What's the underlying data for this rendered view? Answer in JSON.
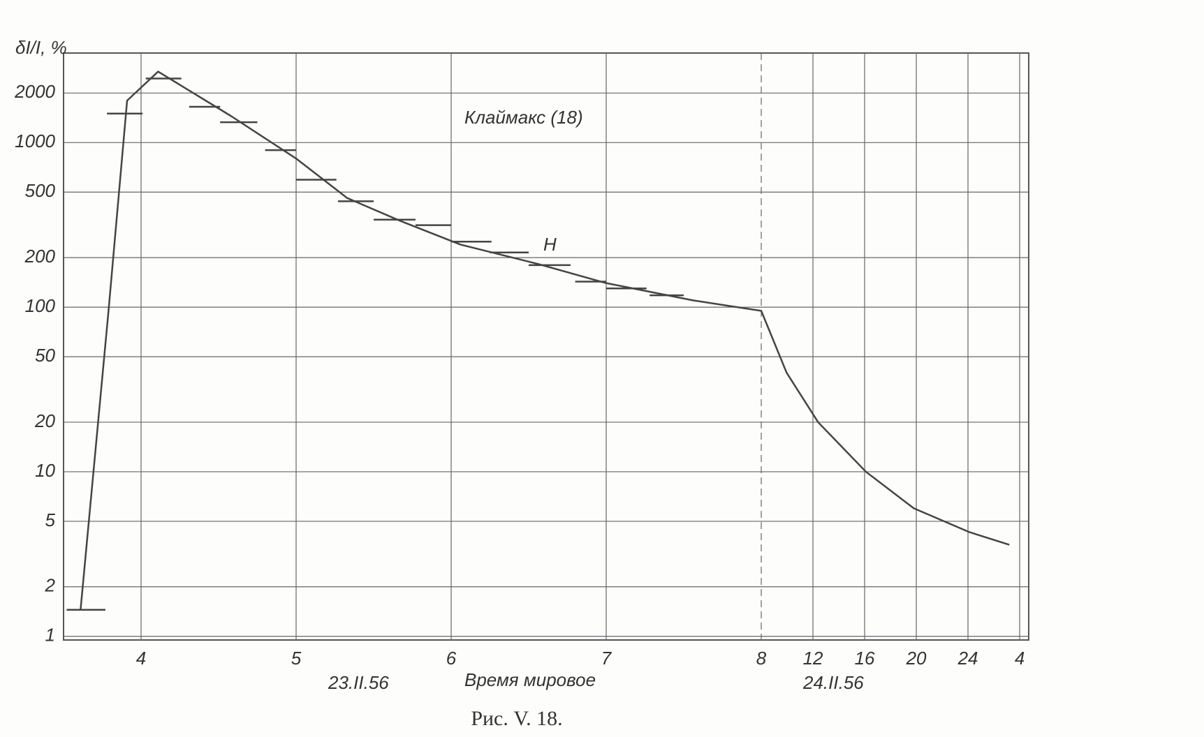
{
  "chart_data": {
    "type": "line",
    "ylabel": "δI/I, %",
    "annotation": "Клаймакс (18)",
    "curve_label": "H",
    "xlabel": "Время мировое",
    "date_left": "23.II.56",
    "date_right": "24.II.56",
    "caption": "Рис. V. 18.",
    "log_y": true,
    "grid": true,
    "color": "#444",
    "xlim": [
      3.5,
      28.7
    ],
    "ylim": [
      0.95,
      3500
    ],
    "xticks": [
      4,
      5,
      6,
      7,
      8,
      12,
      16,
      20,
      24,
      {
        "value": 28,
        "label": "4"
      }
    ],
    "yticks": [
      1,
      2,
      5,
      10,
      20,
      50,
      100,
      200,
      500,
      1000,
      2000
    ],
    "series": [
      {
        "name": "H",
        "color": "#444",
        "x": [
          3.61,
          3.79,
          3.91,
          4.11,
          4.58,
          5.0,
          5.33,
          5.67,
          6.06,
          6.56,
          7.0,
          7.56,
          8.0,
          9.96,
          12.4,
          16.1,
          19.8,
          24.1,
          27.2
        ],
        "values": [
          1.46,
          95,
          1800,
          2700,
          1450,
          800,
          460,
          335,
          240,
          183,
          140,
          110,
          95,
          40,
          20,
          10,
          6,
          4.3,
          3.6
        ]
      }
    ],
    "steps": {
      "x_start": [
        3.52,
        3.78,
        4.03,
        4.31,
        4.51,
        4.8,
        5.0,
        5.27,
        5.5,
        5.77,
        6.0,
        6.25,
        6.5,
        6.8,
        7.0,
        7.28
      ],
      "x_end": [
        3.77,
        4.01,
        4.26,
        4.51,
        4.75,
        5.0,
        5.26,
        5.5,
        5.77,
        6.0,
        6.26,
        6.5,
        6.77,
        7.0,
        7.26,
        7.5
      ],
      "values": [
        1.45,
        1500,
        2450,
        1650,
        1330,
        900,
        595,
        440,
        340,
        315,
        250,
        215,
        180,
        143,
        130,
        118
      ]
    }
  }
}
